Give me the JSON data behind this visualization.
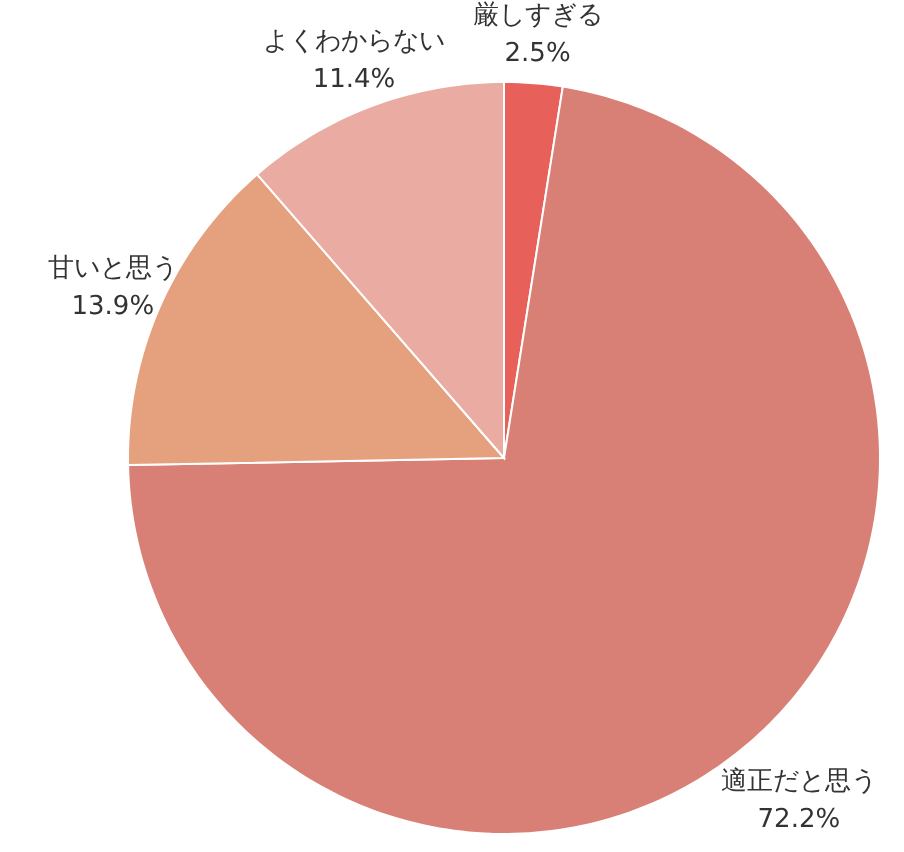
{
  "chart_data": {
    "type": "pie",
    "categories": [
      "厳しすぎる",
      "適正だと思う",
      "甘いと思う",
      "よくわからない"
    ],
    "values": [
      2.5,
      72.2,
      13.9,
      11.4
    ],
    "value_labels": [
      "2.5%",
      "72.2%",
      "13.9%",
      "11.4%"
    ],
    "colors": [
      "#e8605a",
      "#d98076",
      "#e5a07e",
      "#eaaba3"
    ]
  }
}
